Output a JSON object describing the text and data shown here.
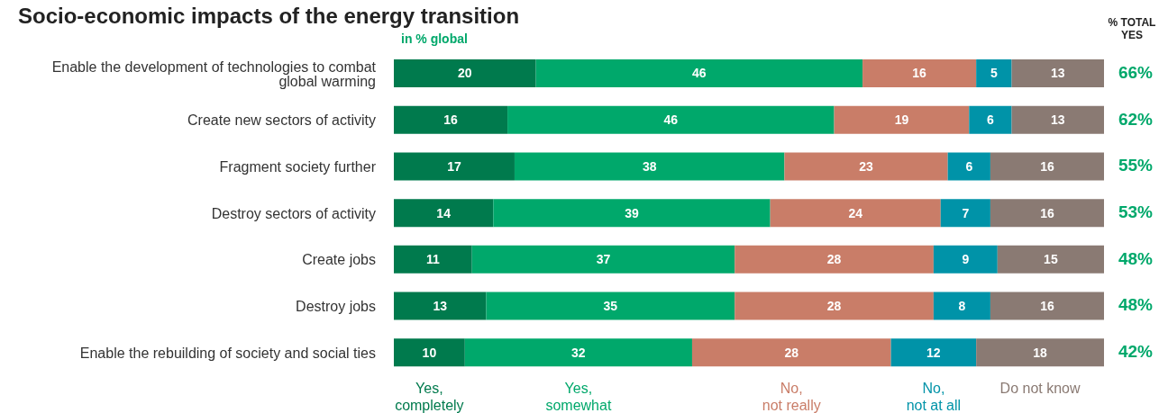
{
  "chart_data": {
    "type": "bar",
    "orientation": "horizontal",
    "stacked": true,
    "title": "Socio-economic impacts of the energy transition",
    "subtitle": "in % global",
    "categories": [
      "Enable the development of technologies to combat global warming",
      "Create new sectors of activity",
      "Fragment society further",
      "Destroy sectors of activity",
      "Create jobs",
      "Destroy jobs",
      "Enable the rebuilding of society and social ties"
    ],
    "series": [
      {
        "name": "Yes, completely",
        "color": "#007a4d",
        "values": [
          20,
          16,
          17,
          14,
          11,
          13,
          10
        ]
      },
      {
        "name": "Yes, somewhat",
        "color": "#00a86b",
        "values": [
          46,
          46,
          38,
          39,
          37,
          35,
          32
        ]
      },
      {
        "name": "No, not really",
        "color": "#c97d68",
        "values": [
          16,
          19,
          23,
          24,
          28,
          28,
          28
        ]
      },
      {
        "name": "No, not at all",
        "color": "#0093a8",
        "values": [
          5,
          6,
          6,
          7,
          9,
          8,
          12
        ]
      },
      {
        "name": "Do not know",
        "color": "#8a7a73",
        "values": [
          13,
          13,
          16,
          16,
          15,
          16,
          18
        ]
      }
    ],
    "xlim": [
      0,
      100
    ],
    "tick_labels": false,
    "data_labels": true,
    "legend": "bottom",
    "annotations": [
      "% TOTAL YES",
      "66%",
      "62%",
      "55%",
      "53%",
      "48%",
      "48%",
      "42%"
    ]
  }
}
